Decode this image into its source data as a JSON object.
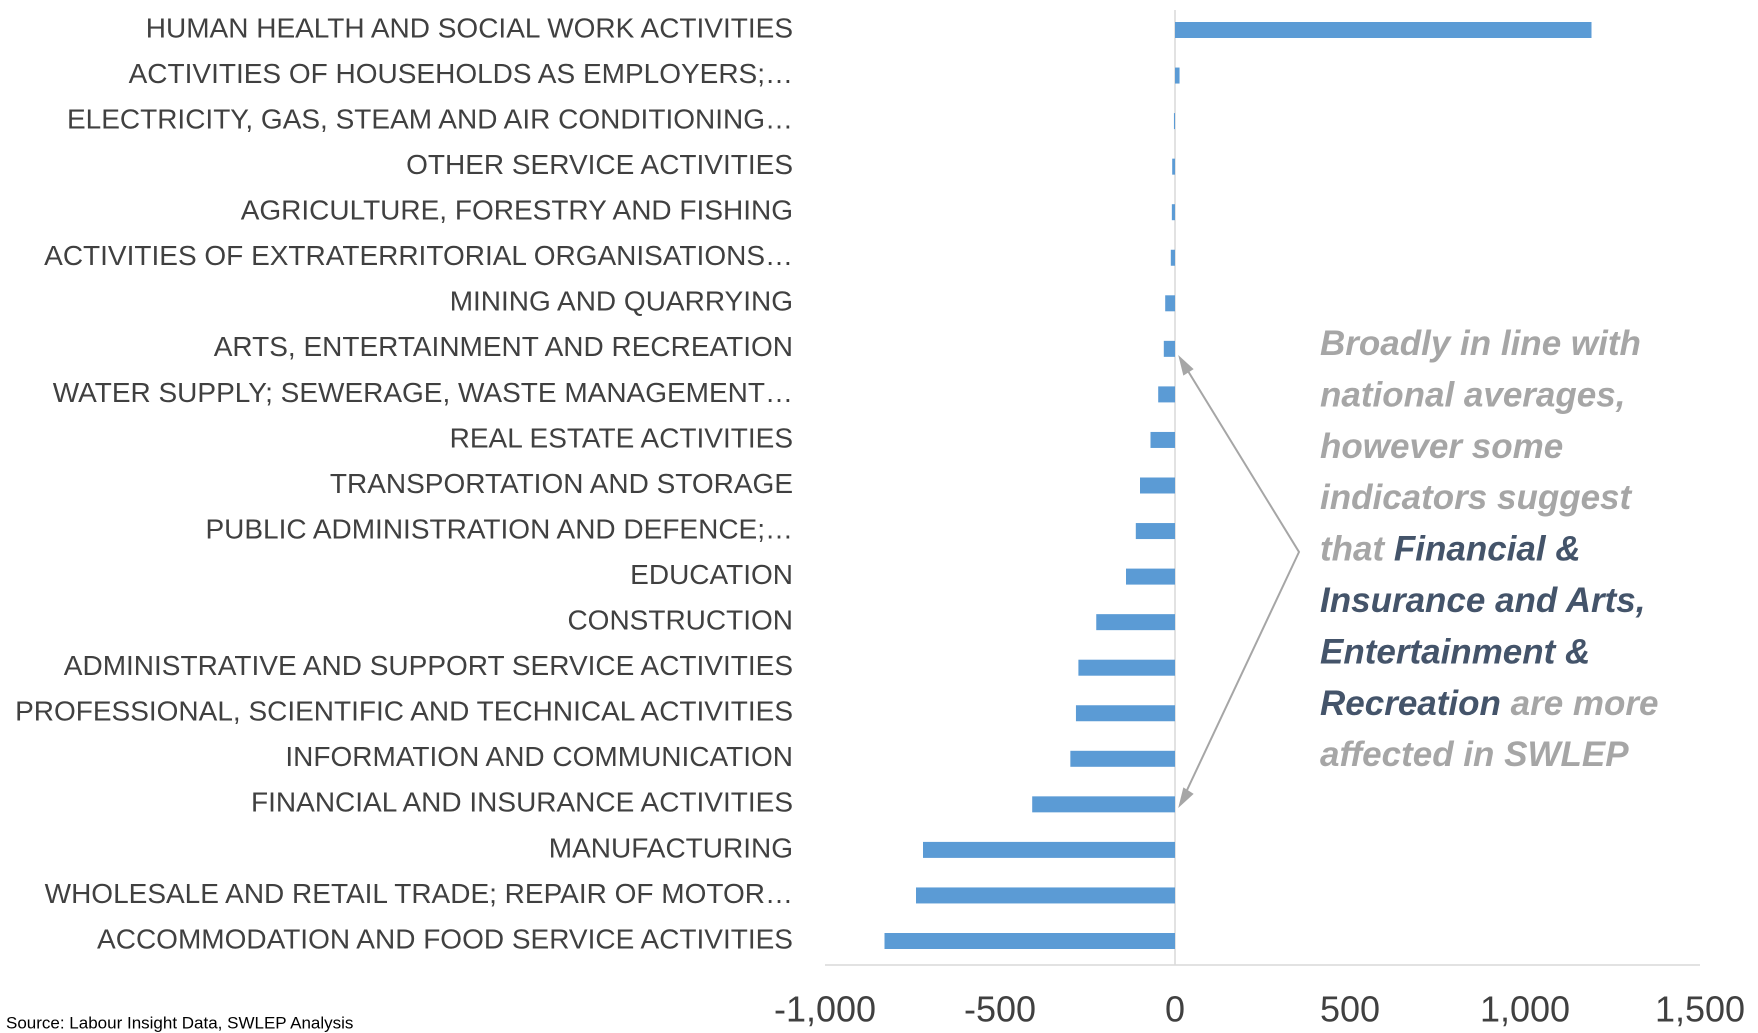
{
  "chart_data": {
    "type": "barh",
    "categories": [
      "HUMAN HEALTH AND SOCIAL WORK ACTIVITIES",
      "ACTIVITIES OF HOUSEHOLDS AS EMPLOYERS;…",
      "ELECTRICITY, GAS, STEAM AND AIR CONDITIONING…",
      "OTHER SERVICE ACTIVITIES",
      "AGRICULTURE, FORESTRY AND FISHING",
      "ACTIVITIES OF EXTRATERRITORIAL ORGANISATIONS…",
      "MINING AND QUARRYING",
      "ARTS, ENTERTAINMENT AND RECREATION",
      "WATER SUPPLY; SEWERAGE, WASTE MANAGEMENT…",
      "REAL ESTATE ACTIVITIES",
      "TRANSPORTATION AND STORAGE",
      "PUBLIC ADMINISTRATION AND DEFENCE;…",
      "EDUCATION",
      "CONSTRUCTION",
      "ADMINISTRATIVE AND SUPPORT SERVICE ACTIVITIES",
      "PROFESSIONAL, SCIENTIFIC AND TECHNICAL ACTIVITIES",
      "INFORMATION AND COMMUNICATION",
      "FINANCIAL AND INSURANCE ACTIVITIES",
      "MANUFACTURING",
      "WHOLESALE AND RETAIL TRADE; REPAIR OF MOTOR…",
      "ACCOMMODATION AND FOOD SERVICE ACTIVITIES"
    ],
    "values": [
      1190,
      13,
      -3,
      -8,
      -9,
      -12,
      -28,
      -32,
      -48,
      -70,
      -100,
      -112,
      -140,
      -225,
      -276,
      -283,
      -299,
      -408,
      -720,
      -740,
      -830
    ],
    "color": "#5b9bd5",
    "xlim": [
      -1000,
      1500
    ],
    "xticks": [
      {
        "value": -1000,
        "label": "-1,000"
      },
      -500,
      0,
      500,
      {
        "value": 1000,
        "label": "1,000"
      },
      {
        "value": 1500,
        "label": "1,500"
      }
    ],
    "annotation": [
      [
        {
          "text": "Broadly in line with"
        }
      ],
      [
        {
          "text": "national averages,"
        }
      ],
      [
        {
          "text": "however some"
        }
      ],
      [
        {
          "text": "indicators suggest"
        }
      ],
      [
        {
          "text": "that "
        },
        {
          "text": "Financial &",
          "highlight": true
        }
      ],
      [
        {
          "text": "Insurance and Arts,",
          "highlight": true
        }
      ],
      [
        {
          "text": "Entertainment &",
          "highlight": true
        }
      ],
      [
        {
          "text": "Recreation",
          "highlight": true
        },
        {
          "text": " are more"
        }
      ],
      [
        {
          "text": "affected in SWLEP"
        }
      ]
    ],
    "source": "Source: Labour Insight Data, SWLEP Analysis"
  }
}
